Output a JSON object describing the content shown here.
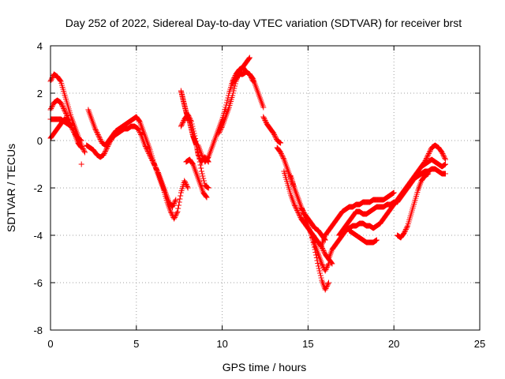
{
  "chart_data": {
    "type": "scatter",
    "title": "Day 252 of 2022, Sidereal Day-to-day VTEC variation (SDTVAR) for receiver brst",
    "xlabel": "GPS time / hours",
    "ylabel": "SDTVAR / TECUs",
    "xlim": [
      0,
      25
    ],
    "ylim": [
      -8,
      4
    ],
    "xticks": [
      0,
      5,
      10,
      15,
      20,
      25
    ],
    "yticks": [
      -8,
      -6,
      -4,
      -2,
      0,
      2,
      4
    ],
    "grid": true,
    "marker": "plus",
    "color": "#ff0000",
    "series": [
      {
        "x": [
          0.0,
          0.2,
          0.4,
          0.6,
          0.8,
          1.0,
          1.2,
          1.4,
          1.6,
          1.8,
          2.0
        ],
        "y": [
          2.5,
          2.8,
          2.7,
          2.5,
          2.0,
          1.5,
          1.0,
          0.6,
          0.2,
          -0.2,
          -0.5
        ]
      },
      {
        "x": [
          0.0,
          0.2,
          0.4,
          0.6,
          0.8,
          1.0,
          1.2,
          1.4,
          1.6,
          1.8
        ],
        "y": [
          1.3,
          1.6,
          1.7,
          1.6,
          1.3,
          1.0,
          0.6,
          0.3,
          0.1,
          0.0
        ]
      },
      {
        "x": [
          0.0,
          0.2,
          0.4,
          0.6,
          0.8,
          1.0,
          1.2,
          1.4,
          1.6,
          1.8
        ],
        "y": [
          0.1,
          0.3,
          0.5,
          0.7,
          0.9,
          0.9,
          0.6,
          0.3,
          -0.1,
          -0.3
        ]
      },
      {
        "x": [
          0.0,
          0.2,
          0.4,
          0.6,
          0.8,
          1.0,
          1.2
        ],
        "y": [
          0.9,
          0.9,
          0.9,
          0.9,
          0.8,
          0.7,
          0.6
        ]
      },
      {
        "x": [
          1.8
        ],
        "y": [
          -1.0
        ]
      },
      {
        "x": [
          2.2,
          2.4,
          2.6,
          2.8,
          3.0,
          3.2,
          3.4,
          3.6,
          3.8,
          4.0,
          4.2,
          4.4,
          4.6,
          4.8,
          5.0,
          5.2,
          5.4,
          5.6,
          5.8,
          6.0,
          6.2,
          6.4,
          6.6,
          6.8,
          7.0,
          7.2,
          7.4,
          7.6,
          7.8,
          8.0
        ],
        "y": [
          1.3,
          0.9,
          0.5,
          0.2,
          -0.1,
          -0.2,
          0.0,
          0.2,
          0.4,
          0.5,
          0.6,
          0.7,
          0.8,
          0.9,
          1.0,
          0.8,
          0.4,
          0.0,
          -0.4,
          -0.9,
          -1.3,
          -1.7,
          -2.1,
          -2.6,
          -3.0,
          -3.3,
          -3.0,
          -2.2,
          -1.7,
          -2.0
        ]
      },
      {
        "x": [
          2.1,
          2.3,
          2.5,
          2.7,
          2.9,
          3.1,
          3.3,
          3.5,
          3.7,
          3.9,
          4.1,
          4.3,
          4.5,
          4.7,
          4.9,
          5.1,
          5.3,
          5.5,
          5.7,
          5.9,
          6.1,
          6.3,
          6.5,
          6.7,
          6.9,
          7.1,
          7.3
        ],
        "y": [
          -0.2,
          -0.3,
          -0.4,
          -0.6,
          -0.7,
          -0.6,
          -0.3,
          0.0,
          0.2,
          0.3,
          0.4,
          0.5,
          0.5,
          0.6,
          0.6,
          0.5,
          0.2,
          -0.2,
          -0.5,
          -0.8,
          -1.1,
          -1.4,
          -1.8,
          -2.2,
          -2.6,
          -2.8,
          -2.5
        ]
      },
      {
        "x": [
          7.6,
          7.7,
          7.8,
          7.9,
          8.0,
          8.1,
          8.2,
          8.3,
          8.4,
          8.5,
          8.6,
          8.8,
          9.0,
          9.2
        ],
        "y": [
          2.1,
          1.8,
          1.5,
          1.2,
          1.0,
          0.8,
          0.5,
          0.2,
          0.0,
          -0.2,
          -0.6,
          -0.9,
          -0.7,
          -0.9
        ]
      },
      {
        "x": [
          7.6,
          7.8,
          8.0,
          8.2,
          8.4,
          8.6,
          8.8,
          9.0,
          9.2
        ],
        "y": [
          0.6,
          0.9,
          1.1,
          0.8,
          0.2,
          -0.5,
          -1.3,
          -1.9,
          -2.0
        ]
      },
      {
        "x": [
          7.9,
          8.1,
          8.3,
          8.5,
          8.7,
          8.9,
          9.1
        ],
        "y": [
          -0.9,
          -0.8,
          -1.0,
          -1.4,
          -1.8,
          -2.2,
          -2.4
        ]
      },
      {
        "x": [
          8.6,
          8.8,
          9.0,
          9.2,
          9.4,
          9.6,
          9.8,
          10.0,
          10.2,
          10.4,
          10.6,
          10.8,
          11.0,
          11.2,
          11.4,
          11.6,
          11.8
        ],
        "y": [
          -0.2,
          -0.6,
          -0.9,
          -0.7,
          -0.3,
          0.1,
          0.5,
          0.9,
          1.4,
          2.0,
          2.5,
          2.8,
          3.0,
          3.1,
          2.9,
          2.8,
          2.5
        ]
      },
      {
        "x": [
          9.8,
          10.0,
          10.2,
          10.4,
          10.6,
          10.8,
          11.0,
          11.2,
          11.4,
          11.6
        ],
        "y": [
          0.3,
          0.6,
          1.0,
          1.4,
          1.9,
          2.5,
          2.9,
          3.1,
          3.3,
          3.5
        ]
      },
      {
        "x": [
          10.6,
          10.8,
          11.0,
          11.2,
          11.4,
          11.6,
          11.8,
          12.0,
          12.2,
          12.4
        ],
        "y": [
          2.4,
          2.6,
          2.8,
          2.8,
          2.9,
          2.8,
          2.6,
          2.2,
          1.8,
          1.4
        ]
      },
      {
        "x": [
          12.4,
          12.6,
          12.8,
          13.0,
          13.2,
          13.4
        ],
        "y": [
          1.0,
          0.7,
          0.5,
          0.3,
          0.0,
          -0.1
        ]
      },
      {
        "x": [
          13.2,
          13.4,
          13.6,
          13.8,
          14.0,
          14.2,
          14.4,
          14.6,
          14.8,
          15.0,
          15.2,
          15.4,
          15.6,
          15.8,
          16.0,
          16.2
        ],
        "y": [
          -0.3,
          -0.5,
          -0.8,
          -1.2,
          -1.6,
          -2.0,
          -2.4,
          -2.8,
          -3.2,
          -3.6,
          -4.0,
          -4.4,
          -4.8,
          -5.2,
          -5.5,
          -5.2
        ]
      },
      {
        "x": [
          13.6,
          13.8,
          14.0,
          14.2,
          14.4,
          14.6,
          14.8,
          15.0,
          15.2,
          15.4,
          15.6,
          15.8,
          16.0,
          16.2,
          16.4
        ],
        "y": [
          -1.3,
          -1.8,
          -2.3,
          -2.7,
          -3.0,
          -3.3,
          -3.5,
          -3.7,
          -3.9,
          -4.1,
          -4.3,
          -4.5,
          -4.8,
          -5.0,
          -5.2
        ]
      },
      {
        "x": [
          14.0,
          14.2,
          14.4,
          14.6,
          14.8,
          15.0,
          15.2,
          15.4,
          15.6,
          15.8,
          16.0
        ],
        "y": [
          -1.5,
          -2.0,
          -2.4,
          -2.8,
          -3.1,
          -3.3,
          -3.5,
          -3.7,
          -3.8,
          -4.0,
          -4.2
        ]
      },
      {
        "x": [
          15.2,
          15.4,
          15.6,
          15.8,
          16.0,
          16.2
        ],
        "y": [
          -4.0,
          -4.6,
          -5.3,
          -5.9,
          -6.3,
          -6.0
        ]
      },
      {
        "x": [
          15.8,
          16.0,
          16.2,
          16.4,
          16.6,
          16.8,
          17.0,
          17.2,
          17.4,
          17.6,
          17.8,
          18.0,
          18.2,
          18.4,
          18.6,
          18.8,
          19.0,
          19.2,
          19.4,
          19.6,
          19.8,
          20.0
        ],
        "y": [
          -4.4,
          -4.0,
          -3.8,
          -3.6,
          -3.4,
          -3.2,
          -3.0,
          -2.9,
          -2.8,
          -2.8,
          -2.7,
          -2.7,
          -2.6,
          -2.6,
          -2.6,
          -2.5,
          -2.5,
          -2.5,
          -2.5,
          -2.4,
          -2.3,
          -2.2
        ]
      },
      {
        "x": [
          16.2,
          16.4,
          16.6,
          16.8,
          17.0,
          17.2,
          17.4,
          17.6,
          17.8,
          18.0,
          18.2,
          18.4,
          18.6,
          18.8,
          19.0,
          19.2,
          19.4,
          19.6,
          19.8,
          20.0,
          20.2,
          20.4,
          20.6,
          20.8,
          21.0,
          21.2,
          21.4,
          21.6,
          21.8,
          22.0,
          22.2,
          22.4,
          22.6,
          22.8,
          23.0
        ],
        "y": [
          -5.0,
          -4.6,
          -4.4,
          -4.2,
          -4.0,
          -3.8,
          -3.7,
          -3.6,
          -3.6,
          -3.5,
          -3.5,
          -3.6,
          -3.6,
          -3.7,
          -3.6,
          -3.5,
          -3.3,
          -3.1,
          -2.9,
          -2.7,
          -2.5,
          -2.3,
          -2.1,
          -1.9,
          -1.7,
          -1.5,
          -1.3,
          -1.1,
          -1.0,
          -0.9,
          -0.8,
          -0.9,
          -1.0,
          -1.1,
          -1.0
        ]
      },
      {
        "x": [
          16.8,
          17.0,
          17.2,
          17.4,
          17.6,
          17.8,
          18.0,
          18.2,
          18.4,
          18.6,
          18.8,
          19.0,
          19.2,
          19.4,
          19.6,
          19.8,
          20.0,
          20.2,
          20.4,
          20.6,
          20.8,
          21.0,
          21.2,
          21.4,
          21.6,
          21.8,
          22.0,
          22.2,
          22.4,
          22.6,
          22.8,
          23.0
        ],
        "y": [
          -4.0,
          -3.8,
          -3.6,
          -3.4,
          -3.2,
          -3.0,
          -3.0,
          -3.1,
          -3.1,
          -3.0,
          -2.9,
          -2.8,
          -2.8,
          -2.8,
          -2.7,
          -2.7,
          -2.6,
          -2.6,
          -2.4,
          -2.2,
          -2.0,
          -1.8,
          -1.6,
          -1.5,
          -1.4,
          -1.3,
          -1.3,
          -1.2,
          -1.2,
          -1.3,
          -1.4,
          -1.4
        ]
      },
      {
        "x": [
          17.4,
          17.6,
          17.8,
          18.0,
          18.2,
          18.4,
          18.6,
          18.8,
          19.0
        ],
        "y": [
          -3.8,
          -3.9,
          -4.0,
          -4.1,
          -4.2,
          -4.3,
          -4.3,
          -4.3,
          -4.2
        ]
      },
      {
        "x": [
          20.2,
          20.4,
          20.6,
          20.8,
          21.0,
          21.2,
          21.4,
          21.6,
          21.8,
          22.0
        ],
        "y": [
          -4.0,
          -4.1,
          -3.9,
          -3.6,
          -3.1,
          -2.6,
          -2.1,
          -1.7,
          -1.5,
          -1.4
        ]
      },
      {
        "x": [
          21.6,
          21.8,
          22.0,
          22.2,
          22.4,
          22.6,
          22.8,
          23.0
        ],
        "y": [
          -1.1,
          -0.9,
          -0.6,
          -0.3,
          -0.2,
          -0.3,
          -0.5,
          -0.8
        ]
      }
    ]
  }
}
